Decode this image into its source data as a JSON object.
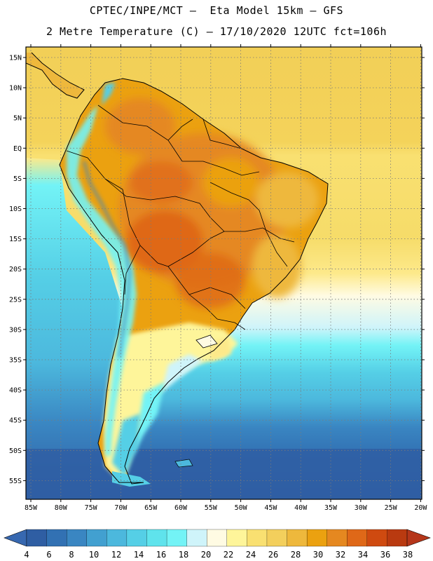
{
  "title": {
    "line1": "CPTEC/INPE/MCT –  Eta Model 15km – GFS",
    "line2": "2 Metre Temperature (C) – 17/10/2020 12UTC fct=106h"
  },
  "lat_labels": [
    "15N",
    "10N",
    "5N",
    "EQ",
    "5S",
    "10S",
    "15S",
    "20S",
    "25S",
    "30S",
    "35S",
    "40S",
    "45S",
    "50S",
    "55S"
  ],
  "lon_labels": [
    "85W",
    "80W",
    "75W",
    "70W",
    "65W",
    "60W",
    "55W",
    "50W",
    "45W",
    "40W",
    "35W",
    "30W",
    "25W",
    "20W"
  ],
  "colorbar": {
    "labels": [
      "4",
      "6",
      "8",
      "10",
      "12",
      "14",
      "16",
      "18",
      "20",
      "22",
      "24",
      "26",
      "28",
      "30",
      "32",
      "34",
      "36",
      "38"
    ],
    "colors": [
      "#2f5ea3",
      "#3271b3",
      "#3a86c2",
      "#42a0d0",
      "#4cb8dd",
      "#55cfe6",
      "#5fe3ec",
      "#73f3f6",
      "#cff4fa",
      "#fffbe3",
      "#fef59a",
      "#f9e071",
      "#f3cf5c",
      "#eeb83c",
      "#eba110",
      "#e58820",
      "#df6818",
      "#cf4a10",
      "#b93a10"
    ],
    "under_color": "#3768b0",
    "over_color": "#b5361a"
  }
}
